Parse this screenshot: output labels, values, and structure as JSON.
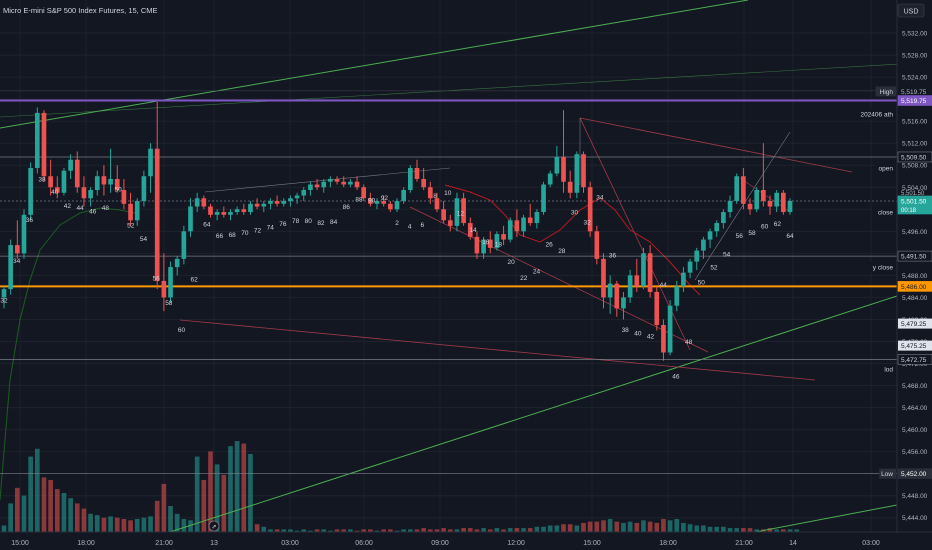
{
  "header": {
    "title": "Micro E-mini S&P 500 Index Futures, 15, CME",
    "currency": "USD"
  },
  "axis": {
    "x_ticks": [
      "15:00",
      "18:00",
      "21:00",
      "13",
      "03:00",
      "06:00",
      "09:00",
      "12:00",
      "15:00",
      "18:00",
      "21:00",
      "14",
      "03:00"
    ],
    "y_ticks": [
      5444,
      5448,
      5452,
      5456,
      5460,
      5464,
      5468,
      5472,
      5476,
      5480,
      5484,
      5488,
      5492,
      5496,
      5500,
      5504,
      5508,
      5512,
      5516,
      5520,
      5524,
      5528,
      5532
    ],
    "ylim": [
      5442.5,
      5536.0
    ]
  },
  "price_labels": [
    {
      "name": "High",
      "value": "5,519.75",
      "color": "#7e57c2",
      "tag": "High"
    },
    {
      "name": "202406 ath",
      "value": "5,519.75",
      "color": "#7e57c2",
      "tag": "202406 ath"
    },
    {
      "name": "open",
      "value": "5,509.50",
      "color": "#ffffff",
      "tag": "open"
    },
    {
      "name": "close",
      "value": "5,501.50",
      "color": "#ffffff",
      "tag": "close"
    },
    {
      "name": "last",
      "value": "5,501.50",
      "color": "#26a69a",
      "tag": "",
      "extra": "00:18"
    },
    {
      "name": "y close",
      "value": "5,491.50",
      "color": "#ffffff",
      "tag": "y close"
    },
    {
      "name": "orange",
      "value": "5,486.00",
      "color": "#ff9800",
      "tag": ""
    },
    {
      "name": "lod",
      "value": "5,472.75",
      "color": "#ffffff",
      "tag": "lod"
    },
    {
      "name": "Low",
      "value": "5,452.00",
      "color": "#ffffff",
      "tag": "Low"
    }
  ],
  "gray_labels": [
    "5,501.50",
    "5,479.25",
    "5,475.25"
  ],
  "chart_data": {
    "type": "candlestick",
    "title": "Micro E-mini S&P 500 Index Futures, 15, CME",
    "ylim": [
      5442.5,
      5536.0
    ],
    "bar_numbers": [
      {
        "n": "32",
        "price": 5483.6
      },
      {
        "n": "34",
        "price": 5490.8
      },
      {
        "n": "36",
        "price": 5498.2
      },
      {
        "n": "38",
        "price": 5505.6
      },
      {
        "n": "40",
        "price": 5503.3
      },
      {
        "n": "42",
        "price": 5500.8
      },
      {
        "n": "44",
        "price": 5500.4
      },
      {
        "n": "46",
        "price": 5499.8
      },
      {
        "n": "48",
        "price": 5500.4
      },
      {
        "n": "50",
        "price": 5503.8
      },
      {
        "n": "52",
        "price": 5497.2
      },
      {
        "n": "54",
        "price": 5494.8
      },
      {
        "n": "56",
        "price": 5487.6
      },
      {
        "n": "58",
        "price": 5483.2
      },
      {
        "n": "60",
        "price": 5478.3
      },
      {
        "n": "62",
        "price": 5487.4
      },
      {
        "n": "64",
        "price": 5497.4
      },
      {
        "n": "66",
        "price": 5495.3
      },
      {
        "n": "68",
        "price": 5495.5
      },
      {
        "n": "70",
        "price": 5495.9
      },
      {
        "n": "72",
        "price": 5496.3
      },
      {
        "n": "74",
        "price": 5496.9
      },
      {
        "n": "76",
        "price": 5497.5
      },
      {
        "n": "78",
        "price": 5498.1
      },
      {
        "n": "80",
        "price": 5498.1
      },
      {
        "n": "82",
        "price": 5497.7
      },
      {
        "n": "84",
        "price": 5497.9
      },
      {
        "n": "86",
        "price": 5500.6
      },
      {
        "n": "88",
        "price": 5502.0
      },
      {
        "n": "90",
        "price": 5501.8
      },
      {
        "n": "92",
        "price": 5502.2
      },
      {
        "n": "2",
        "price": 5497.7
      },
      {
        "n": "4",
        "price": 5497.1
      },
      {
        "n": "6",
        "price": 5497.3
      },
      {
        "n": "8",
        "price": 5502.6
      },
      {
        "n": "10",
        "price": 5503.1
      },
      {
        "n": "12",
        "price": 5499.4
      },
      {
        "n": "14",
        "price": 5496.4
      },
      {
        "n": "16",
        "price": 5494.2
      },
      {
        "n": "18",
        "price": 5493.8
      },
      {
        "n": "20",
        "price": 5490.6
      },
      {
        "n": "22",
        "price": 5487.7
      },
      {
        "n": "24",
        "price": 5488.9
      },
      {
        "n": "26",
        "price": 5493.8
      },
      {
        "n": "28",
        "price": 5492.6
      },
      {
        "n": "30",
        "price": 5499.6
      },
      {
        "n": "32",
        "price": 5497.8
      },
      {
        "n": "34",
        "price": 5502.3
      },
      {
        "n": "36",
        "price": 5491.8
      },
      {
        "n": "38",
        "price": 5478.3
      },
      {
        "n": "40",
        "price": 5477.6
      },
      {
        "n": "42",
        "price": 5477.1
      },
      {
        "n": "44",
        "price": 5486.4
      },
      {
        "n": "46",
        "price": 5469.8
      },
      {
        "n": "48",
        "price": 5476.1
      },
      {
        "n": "50",
        "price": 5486.9
      },
      {
        "n": "52",
        "price": 5489.6
      },
      {
        "n": "54",
        "price": 5492.0
      },
      {
        "n": "56",
        "price": 5495.3
      },
      {
        "n": "58",
        "price": 5495.9
      },
      {
        "n": "60",
        "price": 5497.1
      },
      {
        "n": "62",
        "price": 5497.5
      },
      {
        "n": "64",
        "price": 5495.3
      }
    ],
    "candles": [
      {
        "o": 5484.0,
        "h": 5486.0,
        "l": 5482.0,
        "c": 5485.5
      },
      {
        "o": 5485.5,
        "h": 5494.5,
        "l": 5484.5,
        "c": 5493.5
      },
      {
        "o": 5493.5,
        "h": 5498.0,
        "l": 5491.0,
        "c": 5492.0
      },
      {
        "o": 5492.0,
        "h": 5500.0,
        "l": 5491.0,
        "c": 5499.0
      },
      {
        "o": 5499.0,
        "h": 5508.5,
        "l": 5498.0,
        "c": 5507.5
      },
      {
        "o": 5507.5,
        "h": 5518.5,
        "l": 5506.5,
        "c": 5517.5
      },
      {
        "o": 5517.5,
        "h": 5518.0,
        "l": 5505.0,
        "c": 5506.0
      },
      {
        "o": 5506.0,
        "h": 5509.0,
        "l": 5502.5,
        "c": 5504.0
      },
      {
        "o": 5504.0,
        "h": 5506.0,
        "l": 5502.0,
        "c": 5503.0
      },
      {
        "o": 5503.0,
        "h": 5507.5,
        "l": 5502.5,
        "c": 5507.0
      },
      {
        "o": 5507.0,
        "h": 5510.0,
        "l": 5505.5,
        "c": 5509.0
      },
      {
        "o": 5509.0,
        "h": 5510.5,
        "l": 5503.0,
        "c": 5504.0
      },
      {
        "o": 5504.0,
        "h": 5506.0,
        "l": 5500.5,
        "c": 5502.0
      },
      {
        "o": 5502.0,
        "h": 5504.0,
        "l": 5500.5,
        "c": 5503.5
      },
      {
        "o": 5503.5,
        "h": 5507.0,
        "l": 5502.5,
        "c": 5506.0
      },
      {
        "o": 5506.0,
        "h": 5508.0,
        "l": 5502.5,
        "c": 5504.5
      },
      {
        "o": 5504.5,
        "h": 5511.0,
        "l": 5503.0,
        "c": 5505.5
      },
      {
        "o": 5505.5,
        "h": 5508.0,
        "l": 5503.0,
        "c": 5503.5
      },
      {
        "o": 5503.5,
        "h": 5505.5,
        "l": 5500.0,
        "c": 5501.0
      },
      {
        "o": 5501.0,
        "h": 5503.0,
        "l": 5497.0,
        "c": 5498.0
      },
      {
        "o": 5498.0,
        "h": 5502.0,
        "l": 5497.0,
        "c": 5501.5
      },
      {
        "o": 5501.5,
        "h": 5507.0,
        "l": 5500.5,
        "c": 5506.0
      },
      {
        "o": 5506.0,
        "h": 5512.0,
        "l": 5503.0,
        "c": 5511.0
      },
      {
        "o": 5511.0,
        "h": 5519.5,
        "l": 5485.5,
        "c": 5487.0
      },
      {
        "o": 5487.0,
        "h": 5492.0,
        "l": 5481.5,
        "c": 5484.0
      },
      {
        "o": 5484.0,
        "h": 5490.5,
        "l": 5483.0,
        "c": 5489.5
      },
      {
        "o": 5489.5,
        "h": 5491.5,
        "l": 5488.0,
        "c": 5491.0
      },
      {
        "o": 5491.0,
        "h": 5497.0,
        "l": 5490.0,
        "c": 5496.0
      },
      {
        "o": 5496.0,
        "h": 5502.0,
        "l": 5495.0,
        "c": 5500.5
      },
      {
        "o": 5500.5,
        "h": 5503.0,
        "l": 5499.5,
        "c": 5502.0
      },
      {
        "o": 5502.0,
        "h": 5502.5,
        "l": 5500.0,
        "c": 5500.5
      },
      {
        "o": 5500.5,
        "h": 5501.0,
        "l": 5498.5,
        "c": 5499.0
      },
      {
        "o": 5499.0,
        "h": 5500.0,
        "l": 5498.0,
        "c": 5499.5
      },
      {
        "o": 5499.5,
        "h": 5500.5,
        "l": 5498.5,
        "c": 5499.0
      },
      {
        "o": 5499.0,
        "h": 5500.0,
        "l": 5498.0,
        "c": 5499.5
      },
      {
        "o": 5499.5,
        "h": 5500.5,
        "l": 5499.0,
        "c": 5500.0
      },
      {
        "o": 5500.0,
        "h": 5501.0,
        "l": 5499.0,
        "c": 5499.5
      },
      {
        "o": 5499.5,
        "h": 5501.5,
        "l": 5499.0,
        "c": 5501.0
      },
      {
        "o": 5501.0,
        "h": 5502.0,
        "l": 5500.0,
        "c": 5500.5
      },
      {
        "o": 5500.5,
        "h": 5501.5,
        "l": 5499.5,
        "c": 5501.0
      },
      {
        "o": 5501.0,
        "h": 5502.0,
        "l": 5500.0,
        "c": 5501.5
      },
      {
        "o": 5501.5,
        "h": 5502.5,
        "l": 5500.5,
        "c": 5501.0
      },
      {
        "o": 5501.0,
        "h": 5502.0,
        "l": 5500.5,
        "c": 5501.5
      },
      {
        "o": 5501.5,
        "h": 5502.5,
        "l": 5500.5,
        "c": 5502.0
      },
      {
        "o": 5502.0,
        "h": 5503.0,
        "l": 5501.0,
        "c": 5502.5
      },
      {
        "o": 5502.5,
        "h": 5504.0,
        "l": 5501.5,
        "c": 5503.5
      },
      {
        "o": 5503.5,
        "h": 5505.0,
        "l": 5502.5,
        "c": 5504.5
      },
      {
        "o": 5504.5,
        "h": 5505.5,
        "l": 5503.5,
        "c": 5504.0
      },
      {
        "o": 5504.0,
        "h": 5505.5,
        "l": 5503.0,
        "c": 5505.0
      },
      {
        "o": 5505.0,
        "h": 5506.0,
        "l": 5504.0,
        "c": 5505.5
      },
      {
        "o": 5505.5,
        "h": 5506.0,
        "l": 5504.5,
        "c": 5505.0
      },
      {
        "o": 5505.0,
        "h": 5506.0,
        "l": 5504.0,
        "c": 5504.5
      },
      {
        "o": 5504.5,
        "h": 5505.5,
        "l": 5504.0,
        "c": 5505.0
      },
      {
        "o": 5505.0,
        "h": 5506.0,
        "l": 5503.5,
        "c": 5504.0
      },
      {
        "o": 5504.0,
        "h": 5504.5,
        "l": 5501.5,
        "c": 5502.0
      },
      {
        "o": 5502.0,
        "h": 5503.0,
        "l": 5500.5,
        "c": 5501.0
      },
      {
        "o": 5501.0,
        "h": 5502.0,
        "l": 5500.0,
        "c": 5501.5
      },
      {
        "o": 5501.5,
        "h": 5502.5,
        "l": 5500.5,
        "c": 5501.0
      },
      {
        "o": 5501.0,
        "h": 5501.5,
        "l": 5499.5,
        "c": 5500.0
      },
      {
        "o": 5500.0,
        "h": 5502.0,
        "l": 5499.5,
        "c": 5501.5
      },
      {
        "o": 5501.5,
        "h": 5504.0,
        "l": 5501.0,
        "c": 5503.5
      },
      {
        "o": 5503.5,
        "h": 5508.0,
        "l": 5503.0,
        "c": 5507.5
      },
      {
        "o": 5507.5,
        "h": 5509.0,
        "l": 5505.0,
        "c": 5505.5
      },
      {
        "o": 5505.5,
        "h": 5507.5,
        "l": 5503.5,
        "c": 5504.0
      },
      {
        "o": 5504.0,
        "h": 5505.0,
        "l": 5501.0,
        "c": 5502.0
      },
      {
        "o": 5502.0,
        "h": 5503.0,
        "l": 5499.5,
        "c": 5500.0
      },
      {
        "o": 5500.0,
        "h": 5501.5,
        "l": 5497.5,
        "c": 5498.0
      },
      {
        "o": 5498.0,
        "h": 5499.0,
        "l": 5496.0,
        "c": 5497.0
      },
      {
        "o": 5497.0,
        "h": 5503.0,
        "l": 5496.0,
        "c": 5502.0
      },
      {
        "o": 5502.0,
        "h": 5503.0,
        "l": 5497.0,
        "c": 5497.5
      },
      {
        "o": 5497.5,
        "h": 5498.5,
        "l": 5494.5,
        "c": 5495.0
      },
      {
        "o": 5495.0,
        "h": 5496.0,
        "l": 5491.0,
        "c": 5492.0
      },
      {
        "o": 5492.0,
        "h": 5495.0,
        "l": 5491.0,
        "c": 5494.5
      },
      {
        "o": 5494.5,
        "h": 5496.0,
        "l": 5492.0,
        "c": 5493.0
      },
      {
        "o": 5493.0,
        "h": 5496.0,
        "l": 5492.5,
        "c": 5495.5
      },
      {
        "o": 5495.5,
        "h": 5497.0,
        "l": 5493.5,
        "c": 5494.5
      },
      {
        "o": 5494.5,
        "h": 5498.5,
        "l": 5494.0,
        "c": 5498.0
      },
      {
        "o": 5498.0,
        "h": 5500.0,
        "l": 5495.0,
        "c": 5496.0
      },
      {
        "o": 5496.0,
        "h": 5499.0,
        "l": 5495.0,
        "c": 5498.5
      },
      {
        "o": 5498.5,
        "h": 5501.0,
        "l": 5497.0,
        "c": 5497.5
      },
      {
        "o": 5497.5,
        "h": 5500.0,
        "l": 5496.5,
        "c": 5499.5
      },
      {
        "o": 5499.5,
        "h": 5505.0,
        "l": 5499.0,
        "c": 5504.5
      },
      {
        "o": 5504.5,
        "h": 5507.0,
        "l": 5504.0,
        "c": 5506.5
      },
      {
        "o": 5506.5,
        "h": 5511.5,
        "l": 5506.0,
        "c": 5509.5
      },
      {
        "o": 5509.5,
        "h": 5518.0,
        "l": 5503.0,
        "c": 5505.0
      },
      {
        "o": 5505.0,
        "h": 5507.0,
        "l": 5502.0,
        "c": 5503.0
      },
      {
        "o": 5503.0,
        "h": 5510.5,
        "l": 5502.0,
        "c": 5510.0
      },
      {
        "o": 5510.0,
        "h": 5510.5,
        "l": 5503.0,
        "c": 5504.0
      },
      {
        "o": 5504.0,
        "h": 5505.0,
        "l": 5495.0,
        "c": 5496.0
      },
      {
        "o": 5496.0,
        "h": 5497.0,
        "l": 5490.0,
        "c": 5491.0
      },
      {
        "o": 5491.0,
        "h": 5492.0,
        "l": 5482.0,
        "c": 5484.0
      },
      {
        "o": 5484.0,
        "h": 5488.0,
        "l": 5481.0,
        "c": 5486.5
      },
      {
        "o": 5486.5,
        "h": 5487.0,
        "l": 5480.5,
        "c": 5482.0
      },
      {
        "o": 5482.0,
        "h": 5485.0,
        "l": 5480.0,
        "c": 5484.0
      },
      {
        "o": 5484.0,
        "h": 5489.0,
        "l": 5483.0,
        "c": 5488.0
      },
      {
        "o": 5488.0,
        "h": 5491.0,
        "l": 5485.0,
        "c": 5486.0
      },
      {
        "o": 5486.0,
        "h": 5493.0,
        "l": 5485.5,
        "c": 5492.0
      },
      {
        "o": 5492.0,
        "h": 5493.5,
        "l": 5484.0,
        "c": 5485.0
      },
      {
        "o": 5485.0,
        "h": 5486.0,
        "l": 5478.0,
        "c": 5479.0
      },
      {
        "o": 5479.0,
        "h": 5480.0,
        "l": 5472.5,
        "c": 5474.0
      },
      {
        "o": 5474.0,
        "h": 5483.5,
        "l": 5473.5,
        "c": 5482.5
      },
      {
        "o": 5482.5,
        "h": 5487.0,
        "l": 5481.5,
        "c": 5486.0
      },
      {
        "o": 5486.0,
        "h": 5489.5,
        "l": 5485.0,
        "c": 5488.5
      },
      {
        "o": 5488.5,
        "h": 5491.0,
        "l": 5487.5,
        "c": 5490.5
      },
      {
        "o": 5490.5,
        "h": 5493.0,
        "l": 5489.0,
        "c": 5492.5
      },
      {
        "o": 5492.5,
        "h": 5495.0,
        "l": 5491.0,
        "c": 5494.5
      },
      {
        "o": 5494.5,
        "h": 5496.5,
        "l": 5493.0,
        "c": 5496.0
      },
      {
        "o": 5496.0,
        "h": 5498.0,
        "l": 5495.0,
        "c": 5497.5
      },
      {
        "o": 5497.5,
        "h": 5500.0,
        "l": 5496.5,
        "c": 5499.5
      },
      {
        "o": 5499.5,
        "h": 5502.5,
        "l": 5498.5,
        "c": 5501.5
      },
      {
        "o": 5501.5,
        "h": 5506.5,
        "l": 5501.0,
        "c": 5506.0
      },
      {
        "o": 5506.0,
        "h": 5507.5,
        "l": 5500.0,
        "c": 5501.0
      },
      {
        "o": 5501.0,
        "h": 5502.0,
        "l": 5499.0,
        "c": 5500.0
      },
      {
        "o": 5500.0,
        "h": 5504.0,
        "l": 5499.5,
        "c": 5503.5
      },
      {
        "o": 5503.5,
        "h": 5512.0,
        "l": 5500.5,
        "c": 5501.5
      },
      {
        "o": 5501.5,
        "h": 5502.5,
        "l": 5499.0,
        "c": 5500.5
      },
      {
        "o": 5500.5,
        "h": 5503.5,
        "l": 5499.5,
        "c": 5503.0
      },
      {
        "o": 5503.0,
        "h": 5503.5,
        "l": 5499.0,
        "c": 5499.5
      },
      {
        "o": 5499.5,
        "h": 5502.0,
        "l": 5499.0,
        "c": 5501.5
      }
    ],
    "volumes": [
      0.05,
      0.22,
      0.34,
      0.28,
      0.58,
      0.64,
      0.42,
      0.4,
      0.33,
      0.3,
      0.26,
      0.22,
      0.18,
      0.14,
      0.13,
      0.11,
      0.12,
      0.11,
      0.1,
      0.09,
      0.1,
      0.11,
      0.12,
      0.24,
      0.37,
      0.2,
      0.14,
      0.1,
      0.09,
      0.58,
      0.4,
      0.62,
      0.52,
      0.44,
      0.66,
      0.7,
      0.68,
      0.6,
      0.06,
      0.04,
      0.02,
      0.02,
      0.02,
      0.02,
      0.01,
      0.02,
      0.01,
      0.02,
      0.02,
      0.01,
      0.02,
      0.02,
      0.02,
      0.01,
      0.02,
      0.02,
      0.01,
      0.02,
      0.02,
      0.01,
      0.02,
      0.02,
      0.02,
      0.03,
      0.02,
      0.02,
      0.03,
      0.02,
      0.02,
      0.03,
      0.03,
      0.02,
      0.03,
      0.02,
      0.03,
      0.02,
      0.03,
      0.03,
      0.03,
      0.03,
      0.04,
      0.04,
      0.05,
      0.05,
      0.06,
      0.06,
      0.05,
      0.07,
      0.08,
      0.08,
      0.09,
      0.1,
      0.08,
      0.07,
      0.08,
      0.07,
      0.09,
      0.08,
      0.07,
      0.1,
      0.09,
      0.1,
      0.07,
      0.06,
      0.05,
      0.05,
      0.04,
      0.04,
      0.04,
      0.03,
      0.03,
      0.03,
      0.03,
      0.02,
      0.02,
      0.03,
      0.02,
      0.02,
      0.02,
      0.02
    ]
  }
}
